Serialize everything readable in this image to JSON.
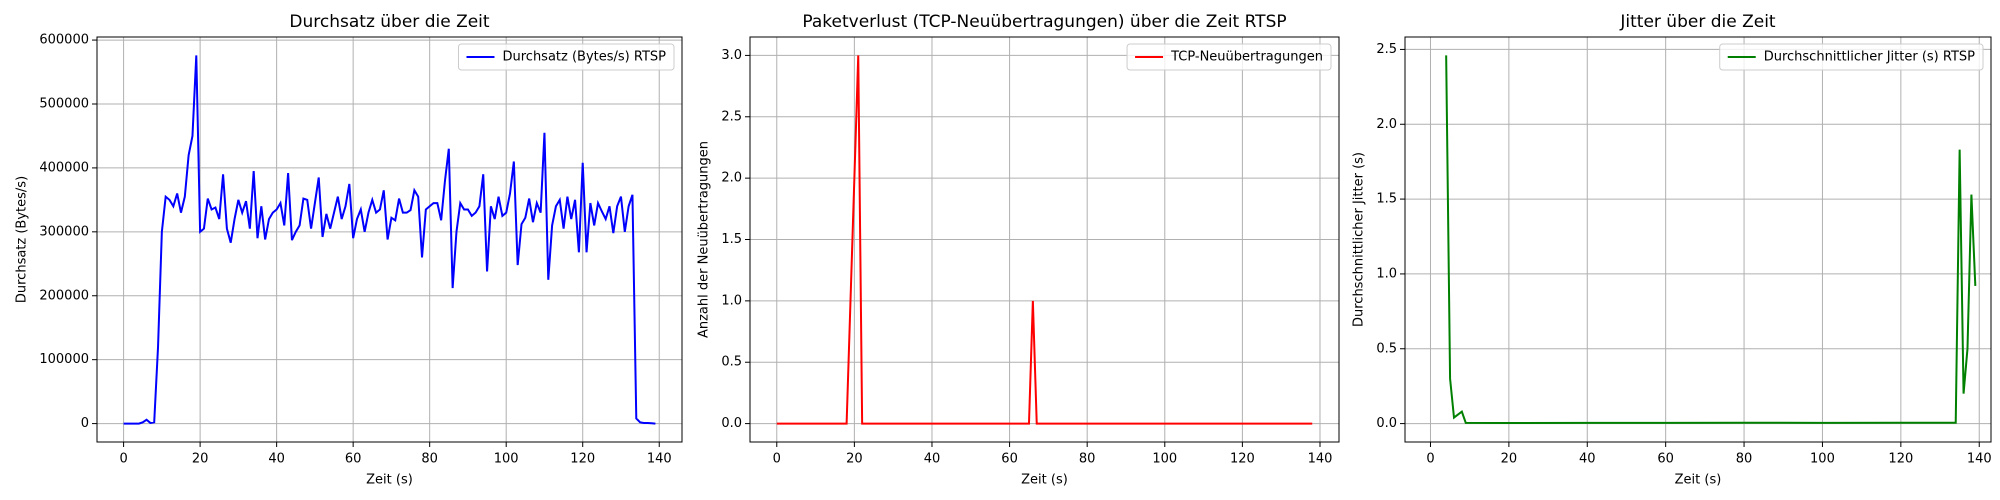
{
  "chart_data": [
    {
      "type": "line",
      "title": "Durchsatz über die Zeit",
      "xlabel": "Zeit (s)",
      "ylabel": "Durchsatz (Bytes/s)",
      "x": [
        0,
        1,
        2,
        3,
        4,
        5,
        6,
        7,
        8,
        9,
        10,
        11,
        12,
        13,
        14,
        15,
        16,
        17,
        18,
        19,
        20,
        21,
        22,
        23,
        24,
        25,
        26,
        27,
        28,
        29,
        30,
        31,
        32,
        33,
        34,
        35,
        36,
        37,
        38,
        39,
        40,
        41,
        42,
        43,
        44,
        45,
        46,
        47,
        48,
        49,
        50,
        51,
        52,
        53,
        54,
        55,
        56,
        57,
        58,
        59,
        60,
        61,
        62,
        63,
        64,
        65,
        66,
        67,
        68,
        69,
        70,
        71,
        72,
        73,
        74,
        75,
        76,
        77,
        78,
        79,
        80,
        81,
        82,
        83,
        84,
        85,
        86,
        87,
        88,
        89,
        90,
        91,
        92,
        93,
        94,
        95,
        96,
        97,
        98,
        99,
        100,
        101,
        102,
        103,
        104,
        105,
        106,
        107,
        108,
        109,
        110,
        111,
        112,
        113,
        114,
        115,
        116,
        117,
        118,
        119,
        120,
        121,
        122,
        123,
        124,
        125,
        126,
        127,
        128,
        129,
        130,
        131,
        132,
        133,
        134,
        135,
        136,
        137,
        138,
        139
      ],
      "series": [
        {
          "name": "Durchsatz (Bytes/s) RTSP",
          "color": "#0000ff",
          "values": [
            0,
            0,
            0,
            0,
            0,
            2000,
            6000,
            1000,
            2000,
            120000,
            300000,
            355000,
            350000,
            340000,
            360000,
            330000,
            355000,
            420000,
            450000,
            576000,
            300000,
            305000,
            352000,
            335000,
            338000,
            320000,
            390000,
            305000,
            283000,
            320000,
            350000,
            330000,
            348000,
            305000,
            395000,
            290000,
            340000,
            288000,
            320000,
            330000,
            335000,
            345000,
            310000,
            392000,
            287000,
            300000,
            310000,
            352000,
            350000,
            305000,
            345000,
            385000,
            292000,
            328000,
            305000,
            330000,
            355000,
            320000,
            340000,
            375000,
            290000,
            320000,
            335000,
            300000,
            330000,
            350000,
            330000,
            335000,
            365000,
            288000,
            322000,
            318000,
            352000,
            330000,
            330000,
            334000,
            365000,
            355000,
            260000,
            335000,
            340000,
            345000,
            345000,
            318000,
            380000,
            430000,
            212000,
            300000,
            345000,
            335000,
            335000,
            325000,
            330000,
            340000,
            390000,
            238000,
            340000,
            320000,
            355000,
            325000,
            330000,
            360000,
            410000,
            248000,
            312000,
            322000,
            352000,
            315000,
            345000,
            330000,
            455000,
            225000,
            310000,
            340000,
            350000,
            305000,
            355000,
            320000,
            350000,
            268000,
            408000,
            268000,
            345000,
            310000,
            345000,
            332000,
            320000,
            340000,
            298000,
            340000,
            355000,
            300000,
            340000,
            358000,
            8000,
            2000,
            1000,
            1000,
            500,
            0
          ]
        }
      ],
      "xlim": [
        -6.95,
        145.95
      ],
      "ylim": [
        -28800,
        604800
      ],
      "xticks": [
        0,
        20,
        40,
        60,
        80,
        100,
        120,
        140
      ],
      "yticks": [
        0,
        100000,
        200000,
        300000,
        400000,
        500000,
        600000
      ],
      "grid": true,
      "legend": "upper right"
    },
    {
      "type": "line",
      "title": "Paketverlust (TCP-Neuübertragungen) über die Zeit RTSP",
      "xlabel": "Zeit (s)",
      "ylabel": "Anzahl der Neuübertragungen",
      "x": [
        0,
        18,
        21,
        22,
        65,
        66,
        67,
        138
      ],
      "series": [
        {
          "name": "TCP-Neuübertragungen",
          "color": "#ff0000",
          "values": [
            0,
            0,
            3,
            0,
            0,
            1,
            0,
            0
          ]
        }
      ],
      "xlim": [
        -6.9,
        144.9
      ],
      "ylim": [
        -0.15,
        3.15
      ],
      "xticks": [
        0,
        20,
        40,
        60,
        80,
        100,
        120,
        140
      ],
      "yticks": [
        {
          "value": 0,
          "label": "0.0"
        },
        {
          "value": 0.5,
          "label": "0.5"
        },
        {
          "value": 1,
          "label": "1.0"
        },
        {
          "value": 1.5,
          "label": "1.5"
        },
        {
          "value": 2,
          "label": "2.0"
        },
        {
          "value": 2.5,
          "label": "2.5"
        },
        {
          "value": 3,
          "label": "3.0"
        }
      ],
      "grid": true,
      "legend": "upper right"
    },
    {
      "type": "line",
      "title": "Jitter über die Zeit",
      "xlabel": "Zeit (s)",
      "ylabel": "Durchschnittlicher Jitter (s)",
      "x": [
        4,
        5,
        6,
        8,
        9,
        20,
        40,
        60,
        80,
        100,
        120,
        134,
        135,
        136,
        137,
        138,
        139
      ],
      "series": [
        {
          "name": "Durchschnittlicher Jitter (s) RTSP",
          "color": "#008000",
          "values": [
            2.46,
            0.3,
            0.04,
            0.08,
            0.005,
            0.004,
            0.005,
            0.005,
            0.006,
            0.005,
            0.006,
            0.006,
            1.83,
            0.2,
            0.5,
            1.53,
            0.92
          ]
        }
      ],
      "xlim": [
        -6.5,
        143
      ],
      "ylim": [
        -0.123,
        2.583
      ],
      "xticks": [
        0,
        20,
        40,
        60,
        80,
        100,
        120,
        140
      ],
      "yticks": [
        {
          "value": 0,
          "label": "0.0"
        },
        {
          "value": 0.5,
          "label": "0.5"
        },
        {
          "value": 1,
          "label": "1.0"
        },
        {
          "value": 1.5,
          "label": "1.5"
        },
        {
          "value": 2,
          "label": "2.0"
        },
        {
          "value": 2.5,
          "label": "2.5"
        }
      ],
      "grid": true,
      "legend": "upper right"
    }
  ]
}
